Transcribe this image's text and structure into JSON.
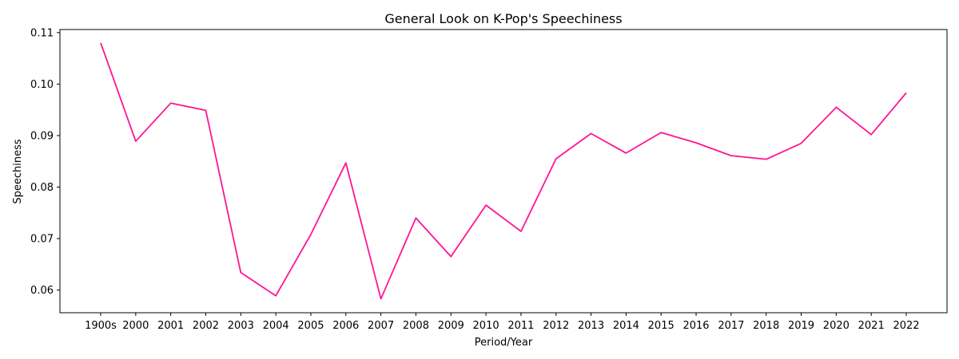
{
  "chart_data": {
    "type": "line",
    "title": "General Look on K-Pop's Speechiness",
    "xlabel": "Period/Year",
    "ylabel": "Speechiness",
    "categories": [
      "1900s",
      "2000",
      "2001",
      "2002",
      "2003",
      "2004",
      "2005",
      "2006",
      "2007",
      "2008",
      "2009",
      "2010",
      "2011",
      "2012",
      "2013",
      "2014",
      "2015",
      "2016",
      "2017",
      "2018",
      "2019",
      "2020",
      "2021",
      "2022"
    ],
    "series": [
      {
        "values": [
          0.108,
          0.0889,
          0.0963,
          0.0949,
          0.0634,
          0.0589,
          0.0708,
          0.0847,
          0.0583,
          0.074,
          0.0665,
          0.0765,
          0.0714,
          0.0855,
          0.0904,
          0.0866,
          0.0906,
          0.0886,
          0.0861,
          0.0854,
          0.0885,
          0.0955,
          0.0902,
          0.0983
        ],
        "color": "#ff1493"
      }
    ],
    "ylim": [
      0.0556,
      0.1106
    ],
    "yticks": [
      "0.06",
      "0.07",
      "0.08",
      "0.09",
      "0.10",
      "0.11"
    ],
    "ytick_values": [
      0.06,
      0.07,
      0.08,
      0.09,
      0.1,
      0.11
    ],
    "grid": false,
    "legend": "none"
  }
}
